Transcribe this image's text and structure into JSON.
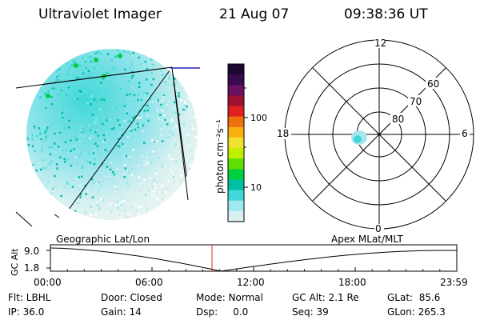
{
  "header": {
    "instrument": "Ultraviolet Imager",
    "date": "21 Aug 07",
    "time": "09:38:36 UT"
  },
  "colorbar": {
    "unit_label": "photon cm⁻²s⁻¹",
    "ticks": [
      "100",
      "10"
    ],
    "colors": [
      "#1a0830",
      "#3a0a50",
      "#6a1060",
      "#a01030",
      "#e02020",
      "#f07010",
      "#f8b010",
      "#f0e030",
      "#c0f000",
      "#60e000",
      "#00d040",
      "#00c0a0",
      "#40d8d8",
      "#a0e8f0",
      "#d8f0f0"
    ]
  },
  "polar_plot": {
    "mlt_labels": {
      "top": "12",
      "left": "18",
      "right": "6",
      "bottom": "0"
    },
    "lat_labels": [
      "60",
      "70",
      "80"
    ]
  },
  "timeline": {
    "axis_title": "GC Alt",
    "y_ticks": [
      "9.0",
      "1.8"
    ],
    "left_label": "Geographic Lat/Lon",
    "right_label": "Apex MLat/MLT",
    "x_ticks": [
      "00:00",
      "06:00",
      "12:00",
      "18:00",
      "23:59"
    ],
    "marker_color": "#e02020"
  },
  "status": {
    "row1": [
      "Flt: LBHL",
      "Door: Closed",
      "Mode: Normal",
      "GC Alt: 2.1 Re",
      "GLat:  85.6"
    ],
    "row2": [
      "IP: 36.0",
      "Gain: 14",
      "Dsp:     0.0",
      "Seq: 39",
      "GLon: 265.3"
    ]
  }
}
